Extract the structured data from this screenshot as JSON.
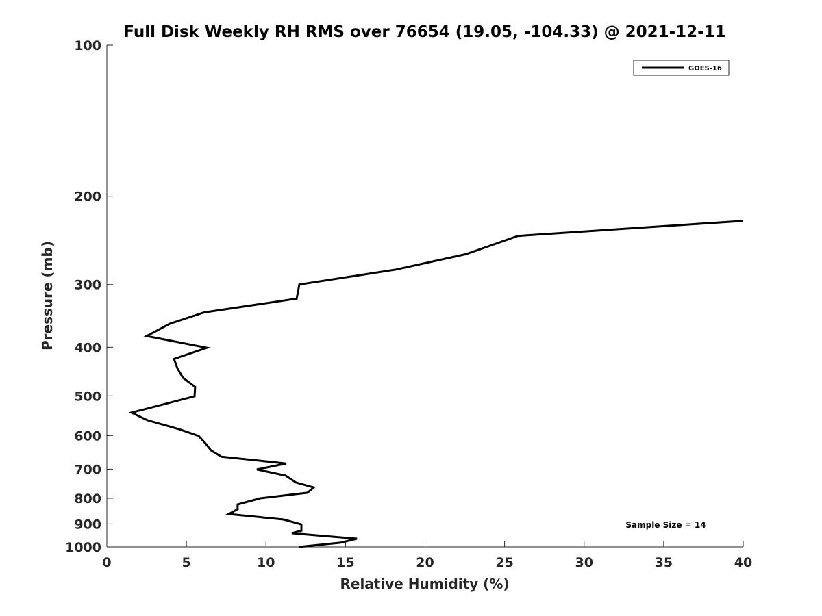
{
  "chart_data": {
    "type": "line",
    "title": "Full Disk Weekly RH RMS over 76654 (19.05, -104.33) @ 2021-12-11",
    "xlabel": "Relative Humidity (%)",
    "ylabel": "Pressure (mb)",
    "xlim": [
      0,
      40
    ],
    "ylim": [
      100,
      1000
    ],
    "yscale": "log",
    "yreverse": true,
    "xticks": [
      "0",
      "5",
      "10",
      "15",
      "20",
      "25",
      "30",
      "35",
      "40"
    ],
    "yticks": [
      "100",
      "200",
      "300",
      "400",
      "500",
      "600",
      "700",
      "800",
      "900",
      "1000"
    ],
    "grid": false,
    "legend": {
      "position": "top-right",
      "entries": [
        "GOES-16"
      ]
    },
    "annotation": "Sample Size = 14",
    "series": [
      {
        "name": "GOES-16",
        "color": "#000000",
        "x": [
          40.0,
          25.83,
          22.56,
          18.17,
          12.1,
          11.93,
          6.11,
          3.96,
          2.5,
          6.29,
          4.22,
          4.44,
          4.78,
          5.55,
          5.51,
          1.55,
          2.54,
          4.56,
          5.77,
          6.2,
          6.54,
          7.19,
          11.28,
          9.43,
          11.24,
          11.88,
          13.0,
          12.61,
          9.64,
          8.22,
          8.22,
          7.66,
          11.11,
          12.23,
          12.23,
          11.63,
          15.72,
          14.68,
          12.06
        ],
        "y": [
          224,
          240,
          261,
          280,
          300,
          320,
          341,
          359,
          380,
          401,
          422,
          441,
          460,
          480,
          501,
          540,
          559,
          583,
          601,
          622,
          642,
          661,
          682,
          701,
          721,
          744,
          761,
          780,
          800,
          823,
          841,
          860,
          882,
          902,
          928,
          939,
          963,
          981,
          1000
        ]
      }
    ]
  }
}
